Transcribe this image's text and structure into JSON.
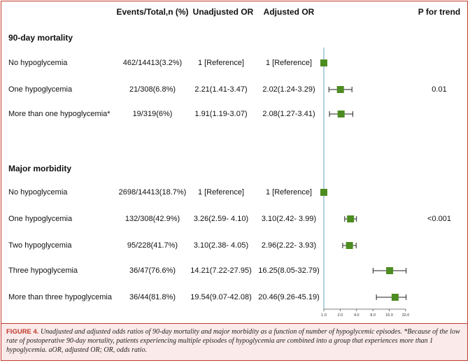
{
  "headers": {
    "events": "Events/Total,n (%)",
    "unadjusted": "Unadjusted OR",
    "adjusted": "Adjusted OR",
    "ptrend": "P for trend"
  },
  "sections": [
    {
      "title": "90-day mortality",
      "rows": [
        {
          "label": "No hypoglycemia",
          "events": "462/14413(3.2%)",
          "unadjusted": "1 [Reference]",
          "adjusted": "1 [Reference]",
          "ptrend": ""
        },
        {
          "label": "One hypoglycemia",
          "events": "21/308(6.8%)",
          "unadjusted": "2.21(1.41-3.47)",
          "adjusted": "2.02(1.24-3.29)",
          "ptrend": "0.01"
        },
        {
          "label": "More than one hypoglycemia*",
          "events": "19/319(6%)",
          "unadjusted": "1.91(1.19-3.07)",
          "adjusted": "2.08(1.27-3.41)",
          "ptrend": ""
        }
      ]
    },
    {
      "title": "Major morbidity",
      "rows": [
        {
          "label": "No hypoglycemia",
          "events": "2698/14413(18.7%)",
          "unadjusted": "1 [Reference]",
          "adjusted": "1 [Reference]",
          "ptrend": ""
        },
        {
          "label": "One hypoglycemia",
          "events": "132/308(42.9%)",
          "unadjusted": "3.26(2.59- 4.10)",
          "adjusted": "3.10(2.42- 3.99)",
          "ptrend": "<0.001"
        },
        {
          "label": "Two hypoglycemia",
          "events": "95/228(41.7%)",
          "unadjusted": "3.10(2.38- 4.05)",
          "adjusted": "2.96(2.22- 3.93)",
          "ptrend": ""
        },
        {
          "label": "Three hypoglycemia",
          "events": "36/47(76.6%)",
          "unadjusted": "14.21(7.22-27.95)",
          "adjusted": "16.25(8.05-32.79)",
          "ptrend": ""
        },
        {
          "label": "More than three hypoglycemia",
          "events": "36/44(81.8%)",
          "unadjusted": "19.54(9.07-42.08)",
          "adjusted": "20.46(9.26-45.19)",
          "ptrend": ""
        }
      ]
    }
  ],
  "chart_data": {
    "type": "scatter",
    "subtype": "forest-plot",
    "x_scale": "log2",
    "xlim": [
      1.0,
      32.0
    ],
    "x_ticks": [
      1.0,
      2.0,
      4.0,
      8.0,
      16.0,
      32.0
    ],
    "x_tick_labels": [
      "1.0",
      "2.0",
      "4.0",
      "8.0",
      "16.0",
      "32.0"
    ],
    "reference_line": 1.0,
    "marker_color": "#4d8c21",
    "reference_line_color": "#7fb0c8",
    "series": [
      {
        "values": [
          {
            "row": "90-day mortality / No hypoglycemia",
            "or": 1.0,
            "ci": [
              1.0,
              1.0
            ]
          },
          {
            "row": "90-day mortality / One hypoglycemia",
            "or": 2.02,
            "ci": [
              1.24,
              3.29
            ]
          },
          {
            "row": "90-day mortality / More than one hypoglycemia*",
            "or": 2.08,
            "ci": [
              1.27,
              3.41
            ]
          },
          {
            "row": "Major morbidity / No hypoglycemia",
            "or": 1.0,
            "ci": [
              1.0,
              1.0
            ]
          },
          {
            "row": "Major morbidity / One hypoglycemia",
            "or": 3.1,
            "ci": [
              2.42,
              3.99
            ]
          },
          {
            "row": "Major morbidity / Two hypoglycemia",
            "or": 2.96,
            "ci": [
              2.22,
              3.93
            ]
          },
          {
            "row": "Major morbidity / Three hypoglycemia",
            "or": 16.25,
            "ci": [
              8.05,
              32.79
            ]
          },
          {
            "row": "Major morbidity / More than three hypoglycemia",
            "or": 20.46,
            "ci": [
              9.26,
              45.19
            ]
          }
        ]
      }
    ]
  },
  "caption": {
    "label": "FIGURE 4.",
    "text": "Unadjusted and adjusted odds ratios of 90-day mortality and major morbidity as a function of number of hypoglycemic episodes. *Because of the low rate of postoperative 90-day mortality, patients experiencing multiple episodes of hypoglycemia are combined into a group that experiences more than 1 hypoglycemia. aOR, adjusted OR; OR, odds ratio."
  }
}
